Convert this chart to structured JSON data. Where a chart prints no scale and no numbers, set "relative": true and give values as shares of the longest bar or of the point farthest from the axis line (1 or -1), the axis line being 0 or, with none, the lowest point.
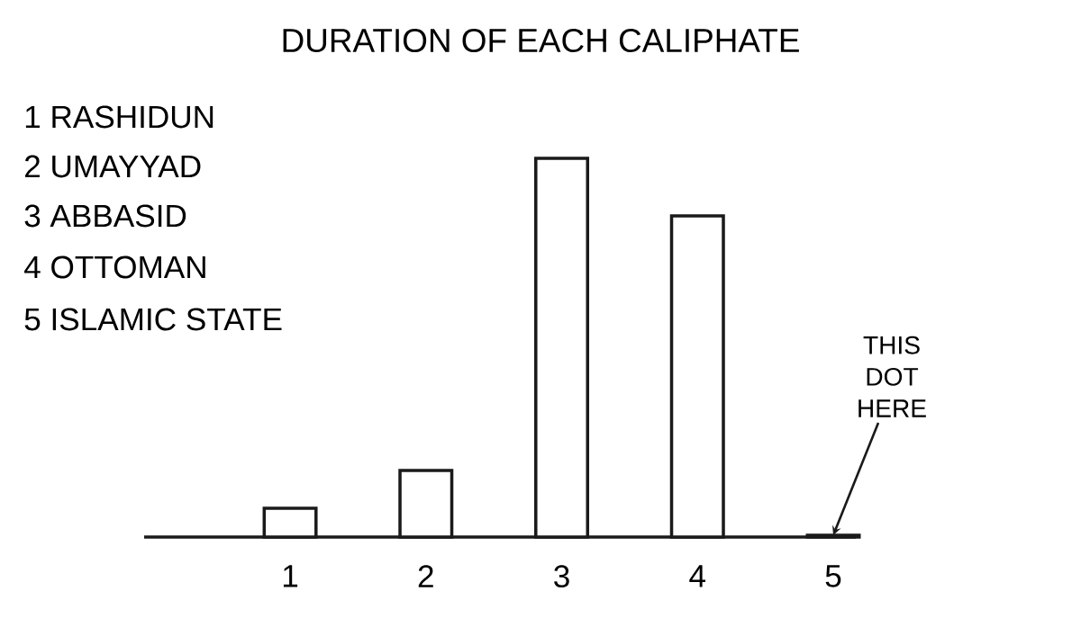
{
  "chart_data": {
    "type": "bar",
    "title": "DURATION OF EACH CALIPHATE",
    "categories": [
      "1",
      "2",
      "3",
      "4",
      "5"
    ],
    "values": [
      0.076,
      0.176,
      1,
      0.848,
      0.005
    ],
    "color": "#1a1a1a",
    "relative": true,
    "annotations": [
      "1 RASHIDUN",
      "2 UMAYYAD",
      "3 ABBASID",
      "4 OTTOMAN",
      "5 ISLAMIC STATE",
      {
        "text": "THIS DOT HERE",
        "x": "5",
        "y": 0.005
      }
    ]
  }
}
